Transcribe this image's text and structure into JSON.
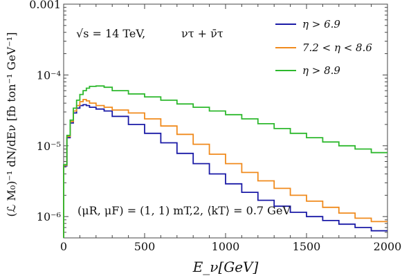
{
  "chart_data": {
    "type": "line",
    "title": "",
    "xlabel": "E_ν[GeV]",
    "ylabel": "(ℒ M₀)⁻¹ dN/dEν [fb ton⁻¹ GeV⁻¹]",
    "xlim": [
      0,
      2000
    ],
    "ylim": [
      5e-07,
      0.001
    ],
    "yscale": "log",
    "grid": false,
    "legend_position": "top-right",
    "x_ticks": [
      0,
      500,
      1000,
      1500,
      2000
    ],
    "x_tick_labels": [
      "0",
      "500",
      "1000",
      "1500",
      "2000"
    ],
    "y_ticks": [
      1e-06,
      1e-05,
      0.0001,
      0.001
    ],
    "y_tick_labels": [
      "10⁻⁶",
      "10⁻⁵",
      "10⁻⁴",
      "0.001"
    ],
    "annotations": [
      "√s = 14 TeV,",
      "ντ + ν̄τ",
      "(μR, μF) = (1, 1) mT,2,   ⟨kT⟩ = 0.7 GeV"
    ],
    "x": [
      20,
      40,
      60,
      80,
      100,
      120,
      140,
      160,
      200,
      250,
      300,
      400,
      500,
      600,
      700,
      800,
      900,
      1000,
      1100,
      1200,
      1300,
      1400,
      1500,
      1600,
      1700,
      1800,
      1900,
      2000
    ],
    "series": [
      {
        "name": "η > 6.9",
        "color": "#1a1aa6",
        "values": [
          5.2e-06,
          1.3e-05,
          2.1e-05,
          2.9e-05,
          3.4e-05,
          3.7e-05,
          3.8e-05,
          3.7e-05,
          3.5e-05,
          3.3e-05,
          3.1e-05,
          2.6e-05,
          2e-05,
          1.5e-05,
          1.1e-05,
          7.8e-06,
          5.6e-06,
          4e-06,
          2.9e-06,
          2.2e-06,
          1.7e-06,
          1.4e-06,
          1.15e-06,
          1e-06,
          8.8e-07,
          7.8e-07,
          7e-07,
          6.3e-07
        ]
      },
      {
        "name": "7.2 < η < 8.6",
        "color": "#f08a1c",
        "values": [
          5.3e-06,
          1.35e-05,
          2.2e-05,
          3.1e-05,
          3.7e-05,
          4.2e-05,
          4.5e-05,
          4.3e-05,
          4e-05,
          3.7e-05,
          3.5e-05,
          3.2e-05,
          2.9e-05,
          2.4e-05,
          1.9e-05,
          1.45e-05,
          1.05e-05,
          7.6e-06,
          5.6e-06,
          4.2e-06,
          3.2e-06,
          2.5e-06,
          2e-06,
          1.65e-06,
          1.35e-06,
          1.12e-06,
          9.5e-07,
          8.5e-07
        ]
      },
      {
        "name": "η > 8.9",
        "color": "#2db82d",
        "values": [
          5.4e-06,
          1.4e-05,
          2.3e-05,
          3.4e-05,
          4.4e-05,
          5.3e-05,
          6e-05,
          6.5e-05,
          6.9e-05,
          7e-05,
          6.7e-05,
          6e-05,
          5.4e-05,
          4.9e-05,
          4.4e-05,
          3.9e-05,
          3.5e-05,
          3.1e-05,
          2.75e-05,
          2.4e-05,
          2.05e-05,
          1.75e-05,
          1.5e-05,
          1.3e-05,
          1.13e-05,
          1e-05,
          9e-06,
          8e-06
        ]
      }
    ]
  }
}
